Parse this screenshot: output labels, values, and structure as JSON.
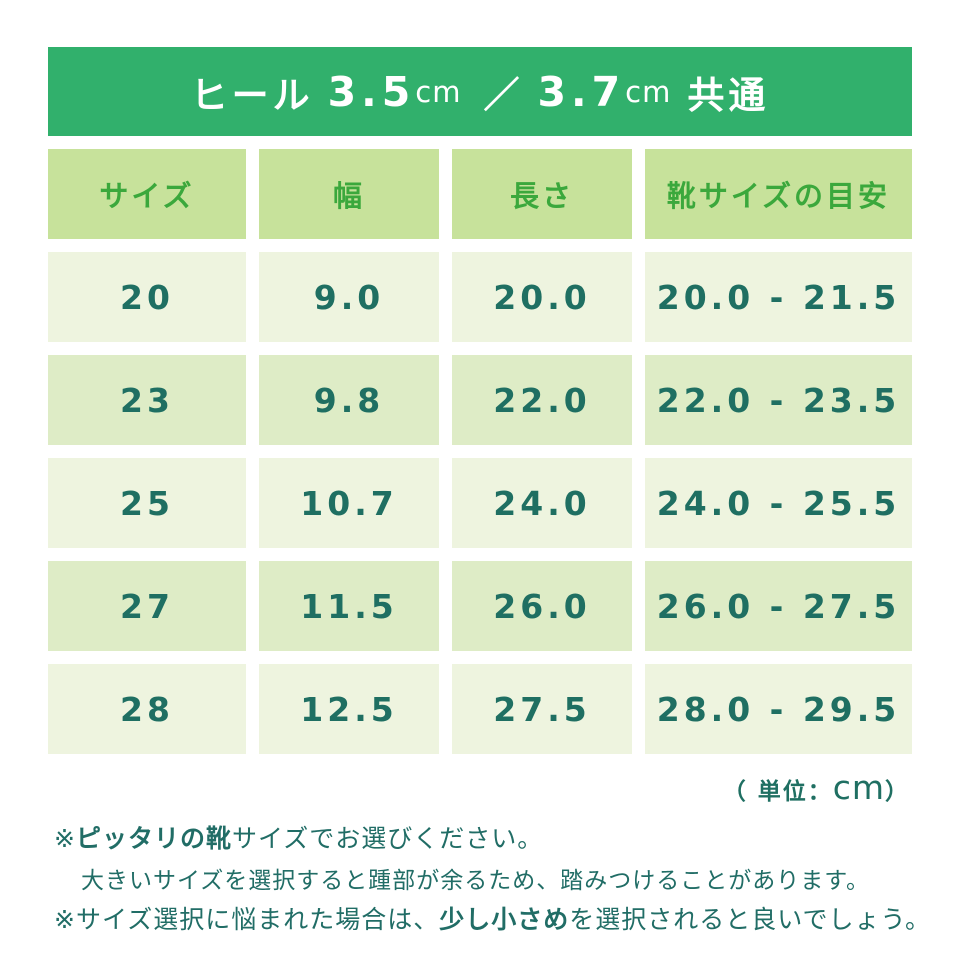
{
  "banner": {
    "label": "ヒール",
    "heel1": "3.5",
    "unit1": "cm",
    "slash": "／",
    "heel2": "3.7",
    "unit2": "cm",
    "suffix": "共通"
  },
  "table": {
    "headers": [
      "サイズ",
      "幅",
      "長さ",
      "靴サイズの目安"
    ],
    "rows": [
      [
        "20",
        "9.0",
        "20.0",
        "20.0 - 21.5"
      ],
      [
        "23",
        "9.8",
        "22.0",
        "22.0 - 23.5"
      ],
      [
        "25",
        "10.7",
        "24.0",
        "24.0 - 25.5"
      ],
      [
        "27",
        "11.5",
        "26.0",
        "26.0 - 27.5"
      ],
      [
        "28",
        "12.5",
        "27.5",
        "28.0 - 29.5"
      ]
    ]
  },
  "unit_note": {
    "open": "（ 単位：",
    "unit": "cm",
    "close": "）"
  },
  "footnotes": {
    "note1": {
      "marker": "※",
      "bold": "ピッタリの靴",
      "rest": "サイズでお選びください。",
      "subtext": "大きいサイズを選択すると踵部が余るため、踏みつけることがあります。"
    },
    "note2": {
      "marker": "※",
      "pre": "サイズ選択に悩まれた場合は、",
      "bold": "少し小さめ",
      "post": "を選択されると良いでしょう。"
    }
  },
  "colors": {
    "banner_green": "#31b06c",
    "header_cell_bg": "#c7e29b",
    "header_text_green": "#3ba83c",
    "row_light_bg": "#eef4df",
    "row_dark_bg": "#deecc6",
    "data_text_teal": "#1f6f62"
  },
  "chart_data": {
    "type": "table",
    "title": "ヒール 3.5cm ／ 3.7cm 共通",
    "unit": "cm",
    "columns": [
      "サイズ",
      "幅",
      "長さ",
      "靴サイズの目安"
    ],
    "rows": [
      {
        "size": 20,
        "width": 9.0,
        "length": 20.0,
        "shoe_size_range": "20.0 - 21.5"
      },
      {
        "size": 23,
        "width": 9.8,
        "length": 22.0,
        "shoe_size_range": "22.0 - 23.5"
      },
      {
        "size": 25,
        "width": 10.7,
        "length": 24.0,
        "shoe_size_range": "24.0 - 25.5"
      },
      {
        "size": 27,
        "width": 11.5,
        "length": 26.0,
        "shoe_size_range": "26.0 - 27.5"
      },
      {
        "size": 28,
        "width": 12.5,
        "length": 27.5,
        "shoe_size_range": "28.0 - 29.5"
      }
    ],
    "notes": [
      "※ピッタリの靴サイズでお選びください。",
      "大きいサイズを選択すると踵部が余るため、踏みつけることがあります。",
      "※サイズ選択に悩まれた場合は、少し小さめを選択されると良いでしょう。"
    ]
  }
}
